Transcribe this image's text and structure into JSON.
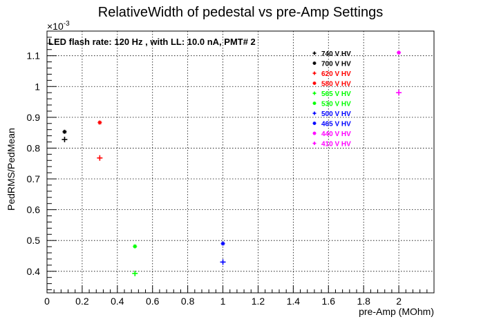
{
  "chart_data": {
    "type": "scatter",
    "title": "RelativeWidth of pedestal vs pre-Amp Settings",
    "annotation": "LED flash rate: 120 Hz , with LL: 10.0 nA, PMT# 2",
    "xlabel": "pre-Amp (MOhm)",
    "ylabel": "PedRMS/PedMean",
    "y_exponent_label": "×10",
    "y_exponent_power": "-3",
    "xlim": [
      0,
      2.2
    ],
    "ylim": [
      0.33,
      1.18
    ],
    "x_ticks": [
      "0",
      "0.2",
      "0.4",
      "0.6",
      "0.8",
      "1",
      "1.2",
      "1.4",
      "1.6",
      "1.8",
      "2"
    ],
    "y_ticks": [
      "0.4",
      "0.5",
      "0.6",
      "0.7",
      "0.8",
      "0.9",
      "1",
      "1.1"
    ],
    "grid": true,
    "legend_position": "top-right",
    "series": [
      {
        "name": "740 V HV",
        "color": "#000000",
        "marker": "plus",
        "points": [
          [
            0.1,
            0.828
          ]
        ]
      },
      {
        "name": "700 V HV",
        "color": "#000000",
        "marker": "star",
        "points": [
          [
            0.1,
            0.853
          ]
        ]
      },
      {
        "name": "620 V HV",
        "color": "#ff0000",
        "marker": "plus",
        "points": [
          [
            0.3,
            0.768
          ]
        ]
      },
      {
        "name": "580 V HV",
        "color": "#ff0000",
        "marker": "star",
        "points": [
          [
            0.3,
            0.883
          ]
        ]
      },
      {
        "name": "565 V HV",
        "color": "#00ff00",
        "marker": "plus",
        "points": [
          [
            0.5,
            0.393
          ]
        ]
      },
      {
        "name": "530 V HV",
        "color": "#00ff00",
        "marker": "star",
        "points": [
          [
            0.5,
            0.481
          ]
        ]
      },
      {
        "name": "500 V HV",
        "color": "#0000ff",
        "marker": "plus",
        "points": [
          [
            1.0,
            0.43
          ]
        ]
      },
      {
        "name": "465 V HV",
        "color": "#0000ff",
        "marker": "star",
        "points": [
          [
            1.0,
            0.49
          ]
        ]
      },
      {
        "name": "440 V HV",
        "color": "#ff00ff",
        "marker": "star",
        "points": [
          [
            2.0,
            1.11
          ]
        ]
      },
      {
        "name": "410 V HV",
        "color": "#ff00ff",
        "marker": "plus",
        "points": [
          [
            2.0,
            0.98
          ]
        ]
      }
    ]
  }
}
